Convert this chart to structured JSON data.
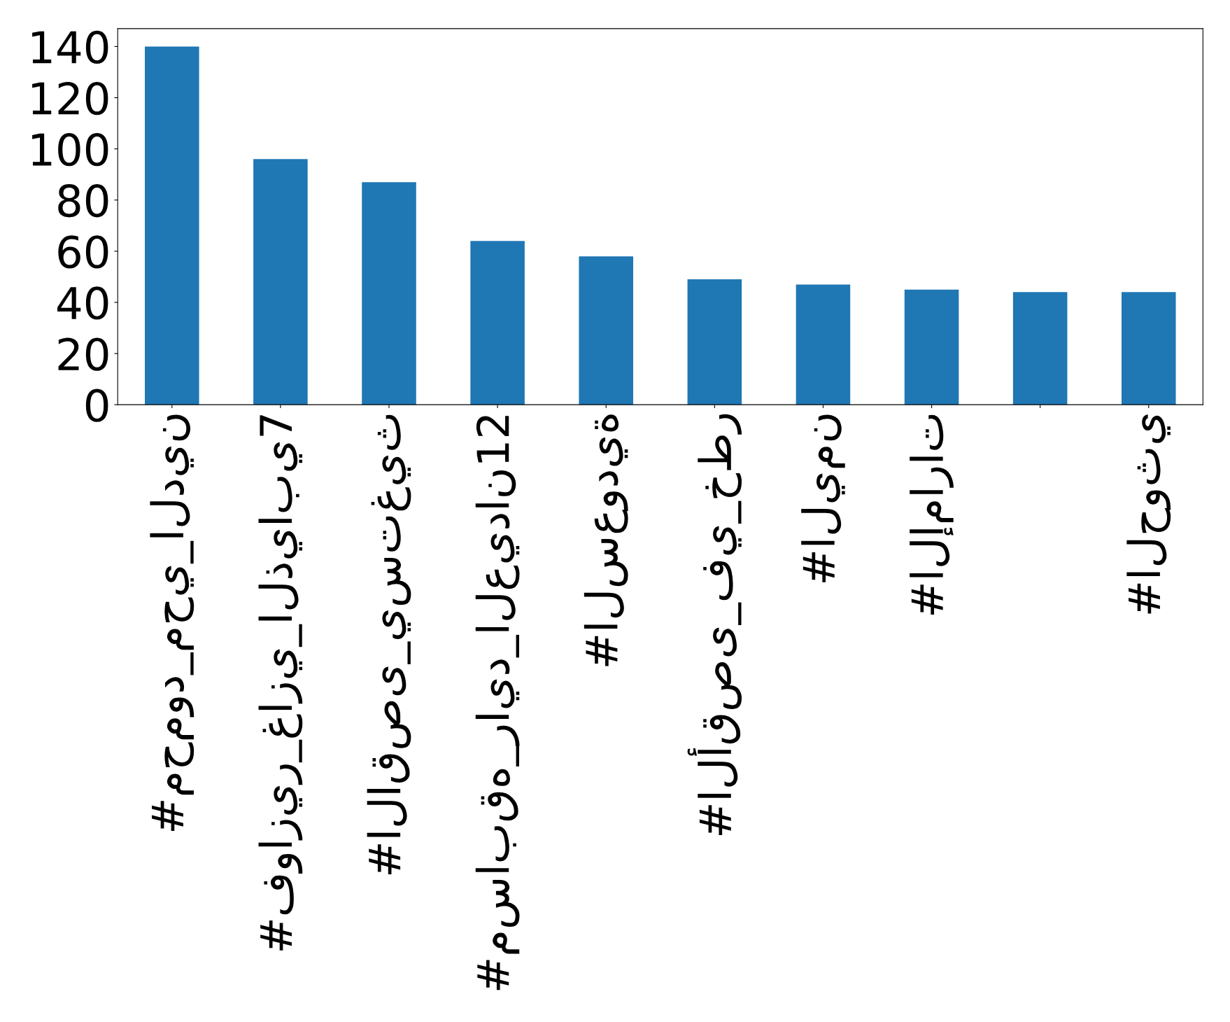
{
  "chart_data": {
    "type": "bar",
    "categories": [
      "#محمود_محي_الدين",
      "#فوازير_غازي_الذيابي7",
      "#الاقصى_يستغيث",
      "#مسابقه_رايد_العيدان12",
      "#السعودية",
      "#الأقصى_في_خطر",
      "#اليمن",
      "#الإمارات",
      null,
      "#الحوثي"
    ],
    "values": [
      140,
      96,
      87,
      64,
      58,
      49,
      47,
      45,
      44,
      44
    ],
    "color": "#1f77b4",
    "ylim": [
      0,
      147
    ],
    "yticks": [
      0,
      20,
      40,
      60,
      80,
      100,
      120,
      140
    ],
    "grid": false
  }
}
